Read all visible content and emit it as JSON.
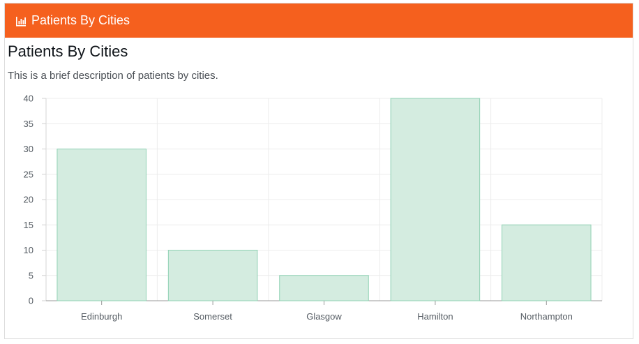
{
  "header": {
    "title": "Patients By Cities",
    "icon": "bar-chart-icon"
  },
  "content": {
    "title": "Patients By Cities",
    "description": "This is a brief description of patients by cities."
  },
  "colors": {
    "header_bg": "#f5601e",
    "bar_fill": "#d4ece0",
    "bar_stroke": "#8fd1b3"
  },
  "chart_data": {
    "type": "bar",
    "categories": [
      "Edinburgh",
      "Somerset",
      "Glasgow",
      "Hamilton",
      "Northampton"
    ],
    "values": [
      30,
      10,
      5,
      40,
      15
    ],
    "ylim": [
      0,
      40
    ],
    "yticks": [
      0,
      5,
      10,
      15,
      20,
      25,
      30,
      35,
      40
    ],
    "grid": true,
    "legend": false
  }
}
